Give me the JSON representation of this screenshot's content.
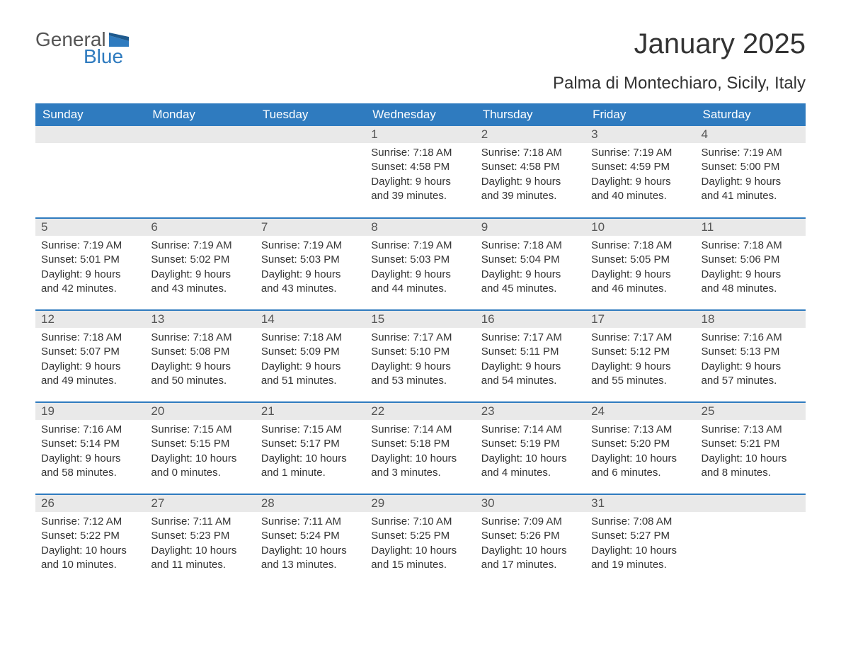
{
  "logo": {
    "general": "General",
    "blue": "Blue"
  },
  "title": "January 2025",
  "subtitle": "Palma di Montechiaro, Sicily, Italy",
  "colors": {
    "header_bg": "#2f7bbf",
    "header_text": "#ffffff",
    "daynum_bg": "#e9e9e9",
    "text": "#333333",
    "page_bg": "#ffffff",
    "row_border": "#2f7bbf",
    "logo_blue": "#2f7bbf",
    "logo_gray": "#555555"
  },
  "fonts": {
    "title_size_pt": 30,
    "subtitle_size_pt": 18,
    "header_size_pt": 13,
    "body_size_pt": 11
  },
  "dayHeaders": [
    "Sunday",
    "Monday",
    "Tuesday",
    "Wednesday",
    "Thursday",
    "Friday",
    "Saturday"
  ],
  "weeks": [
    [
      {
        "day": "",
        "sunrise": "",
        "sunset": "",
        "daylight": ""
      },
      {
        "day": "",
        "sunrise": "",
        "sunset": "",
        "daylight": ""
      },
      {
        "day": "",
        "sunrise": "",
        "sunset": "",
        "daylight": ""
      },
      {
        "day": "1",
        "sunrise": "Sunrise: 7:18 AM",
        "sunset": "Sunset: 4:58 PM",
        "daylight": "Daylight: 9 hours and 39 minutes."
      },
      {
        "day": "2",
        "sunrise": "Sunrise: 7:18 AM",
        "sunset": "Sunset: 4:58 PM",
        "daylight": "Daylight: 9 hours and 39 minutes."
      },
      {
        "day": "3",
        "sunrise": "Sunrise: 7:19 AM",
        "sunset": "Sunset: 4:59 PM",
        "daylight": "Daylight: 9 hours and 40 minutes."
      },
      {
        "day": "4",
        "sunrise": "Sunrise: 7:19 AM",
        "sunset": "Sunset: 5:00 PM",
        "daylight": "Daylight: 9 hours and 41 minutes."
      }
    ],
    [
      {
        "day": "5",
        "sunrise": "Sunrise: 7:19 AM",
        "sunset": "Sunset: 5:01 PM",
        "daylight": "Daylight: 9 hours and 42 minutes."
      },
      {
        "day": "6",
        "sunrise": "Sunrise: 7:19 AM",
        "sunset": "Sunset: 5:02 PM",
        "daylight": "Daylight: 9 hours and 43 minutes."
      },
      {
        "day": "7",
        "sunrise": "Sunrise: 7:19 AM",
        "sunset": "Sunset: 5:03 PM",
        "daylight": "Daylight: 9 hours and 43 minutes."
      },
      {
        "day": "8",
        "sunrise": "Sunrise: 7:19 AM",
        "sunset": "Sunset: 5:03 PM",
        "daylight": "Daylight: 9 hours and 44 minutes."
      },
      {
        "day": "9",
        "sunrise": "Sunrise: 7:18 AM",
        "sunset": "Sunset: 5:04 PM",
        "daylight": "Daylight: 9 hours and 45 minutes."
      },
      {
        "day": "10",
        "sunrise": "Sunrise: 7:18 AM",
        "sunset": "Sunset: 5:05 PM",
        "daylight": "Daylight: 9 hours and 46 minutes."
      },
      {
        "day": "11",
        "sunrise": "Sunrise: 7:18 AM",
        "sunset": "Sunset: 5:06 PM",
        "daylight": "Daylight: 9 hours and 48 minutes."
      }
    ],
    [
      {
        "day": "12",
        "sunrise": "Sunrise: 7:18 AM",
        "sunset": "Sunset: 5:07 PM",
        "daylight": "Daylight: 9 hours and 49 minutes."
      },
      {
        "day": "13",
        "sunrise": "Sunrise: 7:18 AM",
        "sunset": "Sunset: 5:08 PM",
        "daylight": "Daylight: 9 hours and 50 minutes."
      },
      {
        "day": "14",
        "sunrise": "Sunrise: 7:18 AM",
        "sunset": "Sunset: 5:09 PM",
        "daylight": "Daylight: 9 hours and 51 minutes."
      },
      {
        "day": "15",
        "sunrise": "Sunrise: 7:17 AM",
        "sunset": "Sunset: 5:10 PM",
        "daylight": "Daylight: 9 hours and 53 minutes."
      },
      {
        "day": "16",
        "sunrise": "Sunrise: 7:17 AM",
        "sunset": "Sunset: 5:11 PM",
        "daylight": "Daylight: 9 hours and 54 minutes."
      },
      {
        "day": "17",
        "sunrise": "Sunrise: 7:17 AM",
        "sunset": "Sunset: 5:12 PM",
        "daylight": "Daylight: 9 hours and 55 minutes."
      },
      {
        "day": "18",
        "sunrise": "Sunrise: 7:16 AM",
        "sunset": "Sunset: 5:13 PM",
        "daylight": "Daylight: 9 hours and 57 minutes."
      }
    ],
    [
      {
        "day": "19",
        "sunrise": "Sunrise: 7:16 AM",
        "sunset": "Sunset: 5:14 PM",
        "daylight": "Daylight: 9 hours and 58 minutes."
      },
      {
        "day": "20",
        "sunrise": "Sunrise: 7:15 AM",
        "sunset": "Sunset: 5:15 PM",
        "daylight": "Daylight: 10 hours and 0 minutes."
      },
      {
        "day": "21",
        "sunrise": "Sunrise: 7:15 AM",
        "sunset": "Sunset: 5:17 PM",
        "daylight": "Daylight: 10 hours and 1 minute."
      },
      {
        "day": "22",
        "sunrise": "Sunrise: 7:14 AM",
        "sunset": "Sunset: 5:18 PM",
        "daylight": "Daylight: 10 hours and 3 minutes."
      },
      {
        "day": "23",
        "sunrise": "Sunrise: 7:14 AM",
        "sunset": "Sunset: 5:19 PM",
        "daylight": "Daylight: 10 hours and 4 minutes."
      },
      {
        "day": "24",
        "sunrise": "Sunrise: 7:13 AM",
        "sunset": "Sunset: 5:20 PM",
        "daylight": "Daylight: 10 hours and 6 minutes."
      },
      {
        "day": "25",
        "sunrise": "Sunrise: 7:13 AM",
        "sunset": "Sunset: 5:21 PM",
        "daylight": "Daylight: 10 hours and 8 minutes."
      }
    ],
    [
      {
        "day": "26",
        "sunrise": "Sunrise: 7:12 AM",
        "sunset": "Sunset: 5:22 PM",
        "daylight": "Daylight: 10 hours and 10 minutes."
      },
      {
        "day": "27",
        "sunrise": "Sunrise: 7:11 AM",
        "sunset": "Sunset: 5:23 PM",
        "daylight": "Daylight: 10 hours and 11 minutes."
      },
      {
        "day": "28",
        "sunrise": "Sunrise: 7:11 AM",
        "sunset": "Sunset: 5:24 PM",
        "daylight": "Daylight: 10 hours and 13 minutes."
      },
      {
        "day": "29",
        "sunrise": "Sunrise: 7:10 AM",
        "sunset": "Sunset: 5:25 PM",
        "daylight": "Daylight: 10 hours and 15 minutes."
      },
      {
        "day": "30",
        "sunrise": "Sunrise: 7:09 AM",
        "sunset": "Sunset: 5:26 PM",
        "daylight": "Daylight: 10 hours and 17 minutes."
      },
      {
        "day": "31",
        "sunrise": "Sunrise: 7:08 AM",
        "sunset": "Sunset: 5:27 PM",
        "daylight": "Daylight: 10 hours and 19 minutes."
      },
      {
        "day": "",
        "sunrise": "",
        "sunset": "",
        "daylight": ""
      }
    ]
  ]
}
